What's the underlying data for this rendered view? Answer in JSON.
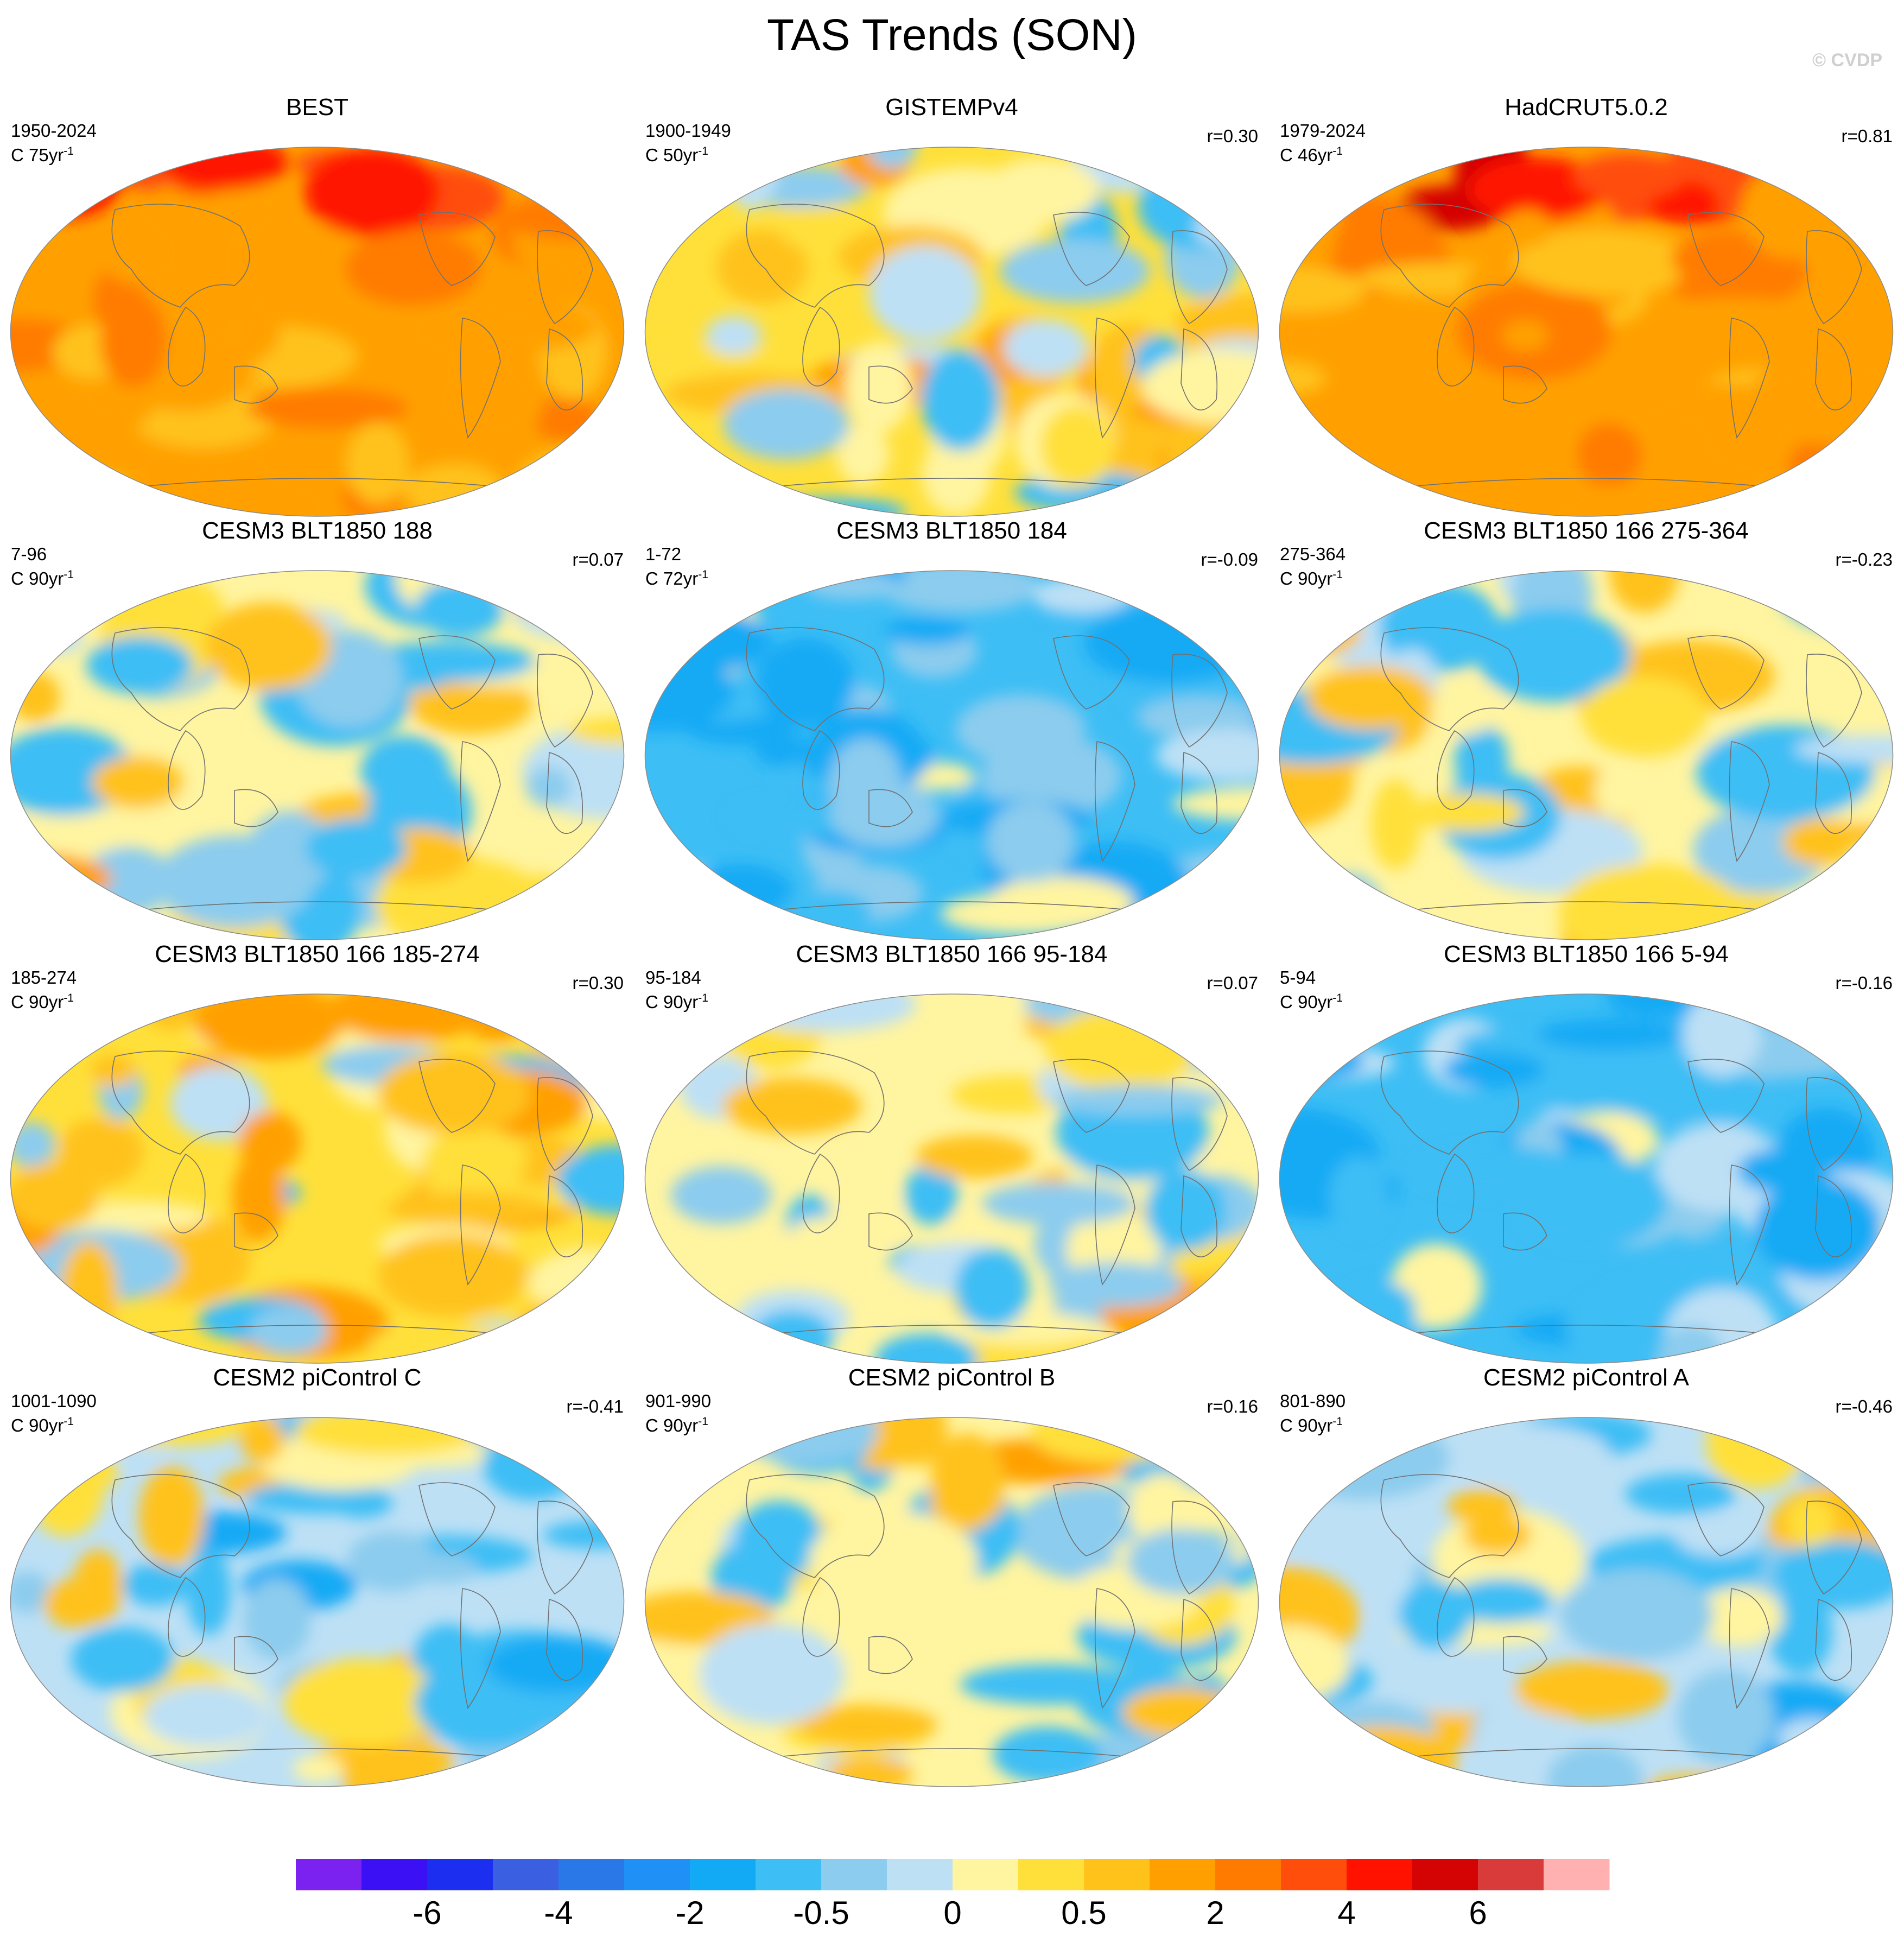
{
  "figure": {
    "title": "TAS Trends (SON)",
    "watermark": "© CVDP",
    "units_prefix": "C",
    "units_suffix": "yr",
    "units_exponent": "-1"
  },
  "chart_data": {
    "type": "heatmap",
    "projection": "robinson",
    "variable": "TAS",
    "season": "SON",
    "panels": [
      {
        "title": "BEST",
        "years": "1950-2024",
        "units_value": "75",
        "r": "",
        "pattern": "warm",
        "seed": 3
      },
      {
        "title": "GISTEMPv4",
        "years": "1900-1949",
        "units_value": "50",
        "r": "r=0.30",
        "pattern": "mildwarm",
        "seed": 11
      },
      {
        "title": "HadCRUT5.0.2",
        "years": "1979-2024",
        "units_value": "46",
        "r": "r=0.81",
        "pattern": "warm",
        "seed": 7
      },
      {
        "title": "CESM3 BLT1850 188",
        "years": "7-96",
        "units_value": "90",
        "r": "r=0.07",
        "pattern": "mixed",
        "seed": 19
      },
      {
        "title": "CESM3 BLT1850 184",
        "years": "1-72",
        "units_value": "72",
        "r": "r=-0.09",
        "pattern": "cool",
        "seed": 23
      },
      {
        "title": "CESM3 BLT1850 166 275-364",
        "years": "275-364",
        "units_value": "90",
        "r": "r=-0.23",
        "pattern": "mixed",
        "seed": 29
      },
      {
        "title": "CESM3 BLT1850 166 185-274",
        "years": "185-274",
        "units_value": "90",
        "r": "r=0.30",
        "pattern": "mildwarm",
        "seed": 31
      },
      {
        "title": "CESM3 BLT1850 166 95-184",
        "years": "95-184",
        "units_value": "90",
        "r": "r=0.07",
        "pattern": "mixed",
        "seed": 37
      },
      {
        "title": "CESM3 BLT1850 166 5-94",
        "years": "5-94",
        "units_value": "90",
        "r": "r=-0.16",
        "pattern": "cool",
        "seed": 41
      },
      {
        "title": "CESM2 piControl C",
        "years": "1001-1090",
        "units_value": "90",
        "r": "r=-0.41",
        "pattern": "mildcool",
        "seed": 43
      },
      {
        "title": "CESM2 piControl B",
        "years": "901-990",
        "units_value": "90",
        "r": "r=0.16",
        "pattern": "mixed",
        "seed": 47
      },
      {
        "title": "CESM2 piControl A",
        "years": "801-890",
        "units_value": "90",
        "r": "r=-0.46",
        "pattern": "mildcool",
        "seed": 53
      }
    ],
    "colorbar": {
      "colors": [
        "#7b21f0",
        "#3b10f5",
        "#1c2ef0",
        "#3a5fe0",
        "#2a78e8",
        "#1f90f5",
        "#12aaf5",
        "#3dbef5",
        "#8cccee",
        "#bde0f5",
        "#fff4a0",
        "#ffe03a",
        "#ffc21a",
        "#ffa000",
        "#ff7b00",
        "#ff4e0c",
        "#ff1200",
        "#d40404",
        "#d93a3a",
        "#ffb0b0"
      ],
      "tick_labels": [
        "-6",
        "-4",
        "-2",
        "-0.5",
        "0",
        "0.5",
        "2",
        "4",
        "6"
      ]
    }
  }
}
